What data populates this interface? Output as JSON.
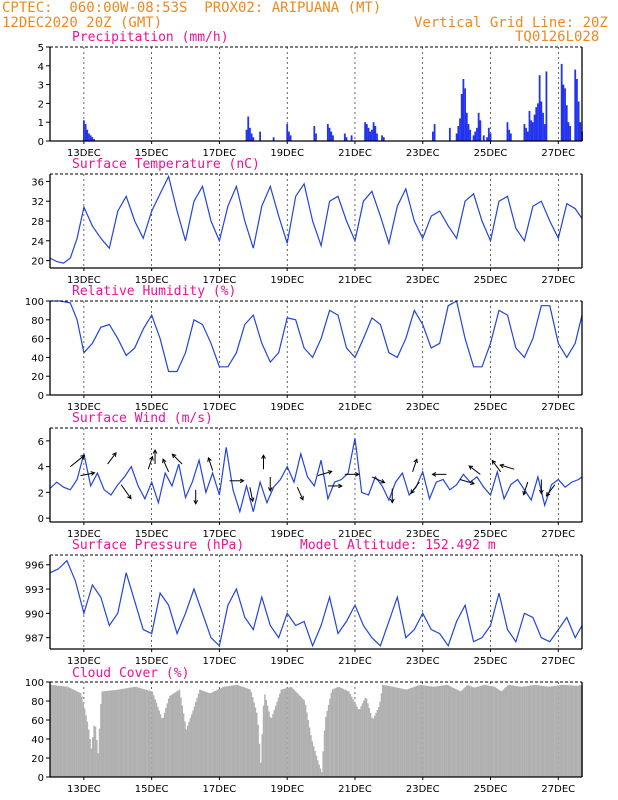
{
  "header": {
    "line1": "CPTEC:  060:00W-08:53S  PROX02: ARIPUANA (MT)",
    "line2": "12DEC2020 20Z (GMT)",
    "grid_note": "Vertical Grid Line: 20Z",
    "model_id": "TQ0126L028"
  },
  "colors": {
    "line": "#2244dd",
    "bars": "#2233ee",
    "cloud": "#b0b0b0",
    "title": "#ee1199",
    "header": "#ee8822"
  },
  "x_ticks": [
    "13DEC",
    "15DEC",
    "17DEC",
    "19DEC",
    "21DEC",
    "23DEC",
    "25DEC",
    "27DEC"
  ],
  "chart_data": [
    {
      "type": "bar",
      "id": "precip",
      "title": "Precipitation (mm/h)",
      "ylim": [
        0,
        5
      ],
      "yticks": [
        "0",
        "1",
        "2",
        "3",
        "4",
        "5"
      ],
      "note": "x in days since start; markers at 13DEC..27DEC",
      "x": [
        0.5,
        0.55,
        0.6,
        0.65,
        0.7,
        0.75,
        0.8,
        5.3,
        5.35,
        5.4,
        5.45,
        5.5,
        5.7,
        6.1,
        6.5,
        6.55,
        6.6,
        7.3,
        7.35,
        7.7,
        7.75,
        7.8,
        7.85,
        8.2,
        8.25,
        8.4,
        8.8,
        8.85,
        8.9,
        8.95,
        9.0,
        9.05,
        9.1,
        9.15,
        9.3,
        9.35,
        10.8,
        10.85,
        11.3,
        11.5,
        11.55,
        11.6,
        11.65,
        11.7,
        11.75,
        11.8,
        11.85,
        11.9,
        12.0,
        12.05,
        12.1,
        12.15,
        12.2,
        12.3,
        12.4,
        12.45,
        12.5,
        13.0,
        13.05,
        13.1,
        13.5,
        13.55,
        13.6,
        13.65,
        13.7,
        13.75,
        13.8,
        13.85,
        13.9,
        13.95,
        14.0,
        14.05,
        14.1,
        14.15,
        14.6,
        14.65,
        14.7,
        14.75,
        14.8,
        14.85,
        15.0,
        15.05,
        15.1,
        15.15,
        15.2
      ],
      "values": [
        1.1,
        0.9,
        0.6,
        0.4,
        0.3,
        0.2,
        0.1,
        0.6,
        1.3,
        0.7,
        0.4,
        0.2,
        0.5,
        0.2,
        0.9,
        0.5,
        0.3,
        0.8,
        0.4,
        0.9,
        0.7,
        0.5,
        0.3,
        0.4,
        0.2,
        0.3,
        1.0,
        0.9,
        0.7,
        0.5,
        0.6,
        1.0,
        0.8,
        0.4,
        0.3,
        0.2,
        0.5,
        0.9,
        0.7,
        0.4,
        0.8,
        1.2,
        2.5,
        3.3,
        2.8,
        1.5,
        0.9,
        0.6,
        0.3,
        0.5,
        0.7,
        1.5,
        1.1,
        0.3,
        0.2,
        0.7,
        0.4,
        1.0,
        0.6,
        0.4,
        0.9,
        0.7,
        0.5,
        1.6,
        1.1,
        1.0,
        1.4,
        1.8,
        2.0,
        3.5,
        2.1,
        1.5,
        0.9,
        3.7,
        4.1,
        3.0,
        2.8,
        1.9,
        1.0,
        0.8,
        3.8,
        3.3,
        2.1,
        1.0,
        0.5
      ],
      "xlim": [
        -0.5,
        15.2
      ]
    },
    {
      "type": "line",
      "id": "temp",
      "title": "Surface Temperature (nC)",
      "ylim": [
        18.5,
        37.5
      ],
      "yticks": [
        "20",
        "24",
        "28",
        "32",
        "36"
      ],
      "ytick_values": [
        20,
        24,
        28,
        32,
        36
      ],
      "xlim": [
        -0.5,
        15.2
      ],
      "x": [
        -0.5,
        -0.3,
        -0.1,
        0.1,
        0.3,
        0.5,
        0.75,
        1.0,
        1.25,
        1.5,
        1.75,
        2.0,
        2.25,
        2.5,
        2.75,
        3.0,
        3.25,
        3.5,
        3.75,
        4.0,
        4.25,
        4.5,
        4.75,
        5.0,
        5.25,
        5.5,
        5.75,
        6.0,
        6.25,
        6.5,
        6.75,
        7.0,
        7.25,
        7.5,
        7.75,
        8.0,
        8.25,
        8.5,
        8.75,
        9.0,
        9.25,
        9.5,
        9.75,
        10.0,
        10.25,
        10.5,
        10.75,
        11.0,
        11.25,
        11.5,
        11.75,
        12.0,
        12.25,
        12.5,
        12.75,
        13.0,
        13.25,
        13.5,
        13.75,
        14.0,
        14.25,
        14.5,
        14.75,
        15.0,
        15.2
      ],
      "y": [
        20.5,
        19.8,
        19.5,
        20.5,
        24.5,
        30.8,
        27,
        24.5,
        22.5,
        30,
        33,
        28,
        24.5,
        30,
        33.5,
        37,
        30,
        24,
        32,
        35,
        28,
        24,
        31,
        35,
        28,
        22.5,
        31,
        35,
        29,
        23.5,
        33,
        35.5,
        28,
        23,
        32,
        33,
        28,
        24,
        32,
        34,
        29,
        23.5,
        31,
        34.5,
        28,
        24.5,
        29,
        30,
        27,
        24.5,
        32,
        33.5,
        28,
        24,
        32,
        33,
        26.5,
        24,
        31,
        32,
        28,
        24.5,
        31.5,
        30.5,
        28.5
      ]
    },
    {
      "type": "line",
      "id": "rh",
      "title": "Relative Humidity (%)",
      "ylim": [
        0,
        100
      ],
      "yticks": [
        "0",
        "20",
        "40",
        "60",
        "80",
        "100"
      ],
      "ytick_values": [
        0,
        20,
        40,
        60,
        80,
        100
      ],
      "xlim": [
        -0.5,
        15.2
      ],
      "x": [
        -0.5,
        -0.2,
        0.1,
        0.3,
        0.5,
        0.75,
        1.0,
        1.25,
        1.5,
        1.75,
        2.0,
        2.25,
        2.5,
        2.75,
        3.0,
        3.25,
        3.5,
        3.75,
        4.0,
        4.25,
        4.5,
        4.75,
        5.0,
        5.25,
        5.5,
        5.75,
        6.0,
        6.25,
        6.5,
        6.75,
        7.0,
        7.25,
        7.5,
        7.75,
        8.0,
        8.25,
        8.5,
        8.75,
        9.0,
        9.25,
        9.5,
        9.75,
        10.0,
        10.25,
        10.5,
        10.75,
        11.0,
        11.25,
        11.5,
        11.75,
        12.0,
        12.25,
        12.5,
        12.75,
        13.0,
        13.25,
        13.5,
        13.75,
        14.0,
        14.25,
        14.5,
        14.75,
        15.0,
        15.2
      ],
      "y": [
        100,
        100,
        98,
        80,
        45,
        55,
        72,
        75,
        60,
        42,
        50,
        70,
        85,
        60,
        25,
        25,
        45,
        80,
        75,
        55,
        30,
        30,
        45,
        75,
        85,
        55,
        35,
        45,
        82,
        80,
        50,
        40,
        60,
        90,
        85,
        50,
        40,
        60,
        82,
        75,
        45,
        40,
        60,
        90,
        75,
        50,
        55,
        95,
        100,
        60,
        30,
        30,
        55,
        90,
        85,
        50,
        40,
        60,
        95,
        95,
        55,
        40,
        55,
        85
      ]
    },
    {
      "type": "line",
      "id": "wind",
      "title": "Surface Wind (m/s)",
      "ylim": [
        -0.3,
        7
      ],
      "yticks": [
        "0",
        "2",
        "4",
        "6"
      ],
      "ytick_values": [
        0,
        2,
        4,
        6
      ],
      "xlim": [
        -0.5,
        15.2
      ],
      "x": [
        -0.5,
        -0.3,
        -0.1,
        0.1,
        0.3,
        0.5,
        0.7,
        0.9,
        1.1,
        1.3,
        1.5,
        1.7,
        1.9,
        2.1,
        2.3,
        2.5,
        2.7,
        2.9,
        3.1,
        3.3,
        3.5,
        3.7,
        3.9,
        4.1,
        4.3,
        4.5,
        4.7,
        4.9,
        5.1,
        5.3,
        5.5,
        5.7,
        5.9,
        6.1,
        6.3,
        6.5,
        6.7,
        6.9,
        7.1,
        7.3,
        7.5,
        7.7,
        7.9,
        8.1,
        8.3,
        8.5,
        8.7,
        8.9,
        9.1,
        9.3,
        9.5,
        9.7,
        9.9,
        10.1,
        10.3,
        10.5,
        10.7,
        10.9,
        11.1,
        11.3,
        11.5,
        11.7,
        11.9,
        12.1,
        12.3,
        12.5,
        12.7,
        12.9,
        13.1,
        13.3,
        13.5,
        13.7,
        13.9,
        14.1,
        14.3,
        14.5,
        14.7,
        14.9,
        15.1,
        15.2
      ],
      "y": [
        2.3,
        2.8,
        2.4,
        2.2,
        3.0,
        5.0,
        2.5,
        3.5,
        2.2,
        1.8,
        2.6,
        3.2,
        4.0,
        2.5,
        1.5,
        2.8,
        1.2,
        3.5,
        2.5,
        4.2,
        1.6,
        2.8,
        4.5,
        2.0,
        3.5,
        1.8,
        5.5,
        2.2,
        0.5,
        2.5,
        0.5,
        2.8,
        1.2,
        2.4,
        3.0,
        4.0,
        2.8,
        5.0,
        3.2,
        2.5,
        4.5,
        1.5,
        2.8,
        3.0,
        3.5,
        6.2,
        2.0,
        1.8,
        3.2,
        2.5,
        1.4,
        2.8,
        3.5,
        1.8,
        2.4,
        3.6,
        1.5,
        2.8,
        3.0,
        2.2,
        2.6,
        3.4,
        2.8,
        3.2,
        2.4,
        1.8,
        3.6,
        1.5,
        2.6,
        3.0,
        2.2,
        1.4,
        3.2,
        1.0,
        2.6,
        3.0,
        2.4,
        2.8,
        3.0,
        3.2
      ],
      "arrows": [
        [
          0.1,
          4,
          1,
          -0.8
        ],
        [
          0.4,
          3.3,
          1,
          -0.2
        ],
        [
          1.2,
          4.2,
          0.6,
          -0.8
        ],
        [
          1.6,
          2.6,
          0.7,
          1.0
        ],
        [
          2.4,
          3.8,
          0.3,
          -0.9
        ],
        [
          2.6,
          4.2,
          0.0,
          -1.0
        ],
        [
          3.0,
          3.6,
          -0.4,
          -0.9
        ],
        [
          3.4,
          4.2,
          -0.7,
          -0.7
        ],
        [
          3.8,
          2.2,
          0.0,
          1.0
        ],
        [
          4.3,
          3.7,
          -0.3,
          -0.9
        ],
        [
          4.8,
          2.9,
          1.0,
          0.0
        ],
        [
          5.4,
          2.4,
          0.2,
          1.0
        ],
        [
          5.8,
          3.8,
          0.0,
          -1.0
        ],
        [
          6.0,
          3.2,
          0.0,
          1.0
        ],
        [
          6.8,
          2.4,
          0.4,
          0.9
        ],
        [
          7.4,
          3.3,
          1.0,
          -0.3
        ],
        [
          7.7,
          2.5,
          1.0,
          0.0
        ],
        [
          8.2,
          3.4,
          1.0,
          0.0
        ],
        [
          9.0,
          3.2,
          0.9,
          0.4
        ],
        [
          9.6,
          2.3,
          0.0,
          1.0
        ],
        [
          10.2,
          3.6,
          0.3,
          -0.9
        ],
        [
          10.4,
          2.8,
          -0.6,
          0.8
        ],
        [
          11.2,
          3.4,
          -1.0,
          0.0
        ],
        [
          11.6,
          3.0,
          1.0,
          0.3
        ],
        [
          12.2,
          3.4,
          -0.8,
          -0.6
        ],
        [
          12.8,
          3.6,
          -0.6,
          -0.8
        ],
        [
          13.2,
          3.8,
          -1.0,
          -0.3
        ],
        [
          13.6,
          2.8,
          -0.3,
          0.9
        ],
        [
          14.0,
          3.0,
          0.0,
          1.0
        ],
        [
          14.4,
          2.6,
          -0.6,
          0.8
        ]
      ]
    },
    {
      "type": "line",
      "id": "pres",
      "title": "Surface Pressure (hPa)",
      "annotation": "Model Altitude: 152.492 m",
      "ylim": [
        985.6,
        997.2
      ],
      "yticks": [
        "987",
        "990",
        "993",
        "996"
      ],
      "ytick_values": [
        987,
        990,
        993,
        996
      ],
      "xlim": [
        -0.5,
        15.2
      ],
      "x": [
        -0.5,
        -0.25,
        0.0,
        0.25,
        0.5,
        0.75,
        1.0,
        1.25,
        1.5,
        1.75,
        2.0,
        2.25,
        2.5,
        2.75,
        3.0,
        3.25,
        3.5,
        3.75,
        4.0,
        4.25,
        4.5,
        4.75,
        5.0,
        5.25,
        5.5,
        5.75,
        6.0,
        6.25,
        6.5,
        6.75,
        7.0,
        7.25,
        7.5,
        7.75,
        8.0,
        8.25,
        8.5,
        8.75,
        9.0,
        9.25,
        9.5,
        9.75,
        10.0,
        10.25,
        10.5,
        10.75,
        11.0,
        11.25,
        11.5,
        11.75,
        12.0,
        12.25,
        12.5,
        12.75,
        13.0,
        13.25,
        13.5,
        13.75,
        14.0,
        14.25,
        14.5,
        14.75,
        15.0,
        15.2
      ],
      "y": [
        995,
        995.5,
        996.5,
        994,
        990,
        993.5,
        992,
        988.5,
        990,
        995,
        991.5,
        988,
        987.5,
        992.5,
        991,
        987.5,
        990,
        993,
        990,
        987,
        986,
        991,
        993,
        989.5,
        988,
        992,
        988.5,
        987,
        990,
        988.5,
        989,
        986,
        988.5,
        992,
        987.5,
        989,
        991,
        988.5,
        987,
        986,
        989,
        992,
        987,
        988,
        990,
        988,
        987.5,
        986,
        989,
        991,
        986.5,
        987,
        988.5,
        992.5,
        988,
        986.5,
        990,
        989.5,
        987,
        986.5,
        988,
        989.5,
        987,
        988.5
      ]
    },
    {
      "type": "bar",
      "id": "cloud",
      "title": "Cloud Cover (%)",
      "ylim": [
        0,
        100
      ],
      "yticks": [
        "0",
        "20",
        "40",
        "60",
        "80",
        "100"
      ],
      "ytick_values": [
        0,
        20,
        40,
        60,
        80,
        100
      ],
      "xlim": [
        -0.5,
        15.2
      ],
      "profile": [
        [
          -0.5,
          97
        ],
        [
          0.0,
          95
        ],
        [
          0.4,
          88
        ],
        [
          0.6,
          55
        ],
        [
          0.7,
          30
        ],
        [
          0.8,
          60
        ],
        [
          0.9,
          25
        ],
        [
          1.0,
          90
        ],
        [
          1.5,
          92
        ],
        [
          2.0,
          95
        ],
        [
          2.5,
          90
        ],
        [
          2.8,
          60
        ],
        [
          3.0,
          85
        ],
        [
          3.3,
          92
        ],
        [
          3.5,
          50
        ],
        [
          3.7,
          70
        ],
        [
          3.9,
          92
        ],
        [
          4.2,
          88
        ],
        [
          4.6,
          95
        ],
        [
          5.0,
          97
        ],
        [
          5.4,
          92
        ],
        [
          5.6,
          65
        ],
        [
          5.7,
          15
        ],
        [
          5.8,
          90
        ],
        [
          6.0,
          60
        ],
        [
          6.3,
          92
        ],
        [
          6.6,
          95
        ],
        [
          7.0,
          80
        ],
        [
          7.2,
          40
        ],
        [
          7.4,
          15
        ],
        [
          7.5,
          5
        ],
        [
          7.6,
          60
        ],
        [
          7.8,
          92
        ],
        [
          8.0,
          95
        ],
        [
          8.3,
          90
        ],
        [
          8.6,
          70
        ],
        [
          8.8,
          85
        ],
        [
          9.0,
          60
        ],
        [
          9.2,
          75
        ],
        [
          9.3,
          97
        ],
        [
          9.6,
          95
        ],
        [
          10.0,
          92
        ],
        [
          10.4,
          97
        ],
        [
          10.8,
          95
        ],
        [
          11.2,
          97
        ],
        [
          11.6,
          90
        ],
        [
          11.8,
          97
        ],
        [
          12.0,
          94
        ],
        [
          12.3,
          97
        ],
        [
          12.6,
          95
        ],
        [
          12.8,
          90
        ],
        [
          13.0,
          97
        ],
        [
          13.4,
          95
        ],
        [
          13.8,
          97
        ],
        [
          14.2,
          95
        ],
        [
          14.6,
          97
        ],
        [
          15.0,
          96
        ],
        [
          15.2,
          97
        ]
      ]
    }
  ]
}
